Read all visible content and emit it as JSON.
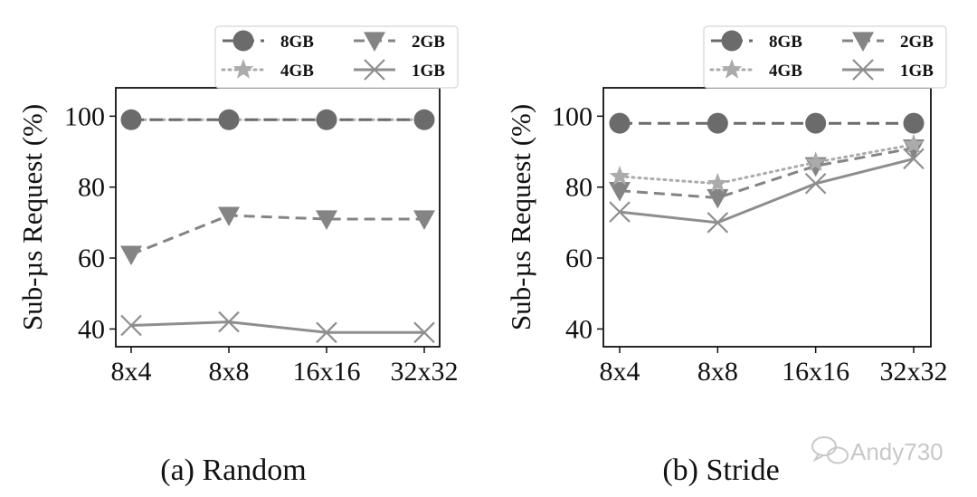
{
  "chart_data": [
    {
      "type": "line",
      "caption": "(a) Random",
      "ylabel": "Sub-µs Request (%)",
      "categories": [
        "8x4",
        "8x8",
        "16x16",
        "32x32"
      ],
      "ylim": [
        35,
        108
      ],
      "yticks": [
        40,
        60,
        80,
        100
      ],
      "series": [
        {
          "name": "8GB",
          "values": [
            99,
            99,
            99,
            99
          ]
        },
        {
          "name": "4GB",
          "values": [
            99,
            99,
            99,
            99
          ]
        },
        {
          "name": "2GB",
          "values": [
            61,
            72,
            71,
            71
          ]
        },
        {
          "name": "1GB",
          "values": [
            41,
            42,
            39,
            39
          ]
        }
      ]
    },
    {
      "type": "line",
      "caption": "(b) Stride",
      "ylabel": "Sub-µs Request (%)",
      "categories": [
        "8x4",
        "8x8",
        "16x16",
        "32x32"
      ],
      "ylim": [
        35,
        108
      ],
      "yticks": [
        40,
        60,
        80,
        100
      ],
      "series": [
        {
          "name": "8GB",
          "values": [
            98,
            98,
            98,
            98
          ]
        },
        {
          "name": "4GB",
          "values": [
            83,
            81,
            87,
            92
          ]
        },
        {
          "name": "2GB",
          "values": [
            79,
            77,
            86,
            91
          ]
        },
        {
          "name": "1GB",
          "values": [
            73,
            70,
            81,
            88
          ]
        }
      ]
    }
  ],
  "series_styles": {
    "8GB": {
      "color": "#6b6b6b",
      "marker": "circle",
      "dash": "14,7"
    },
    "4GB": {
      "color": "#ababab",
      "marker": "star",
      "dash": "2,5"
    },
    "2GB": {
      "color": "#848484",
      "marker": "triangle-down",
      "dash": "12,7"
    },
    "1GB": {
      "color": "#8e8e8e",
      "marker": "x",
      "dash": ""
    }
  },
  "legend_order": [
    "8GB",
    "2GB",
    "4GB",
    "1GB"
  ],
  "watermark": "Andy730"
}
